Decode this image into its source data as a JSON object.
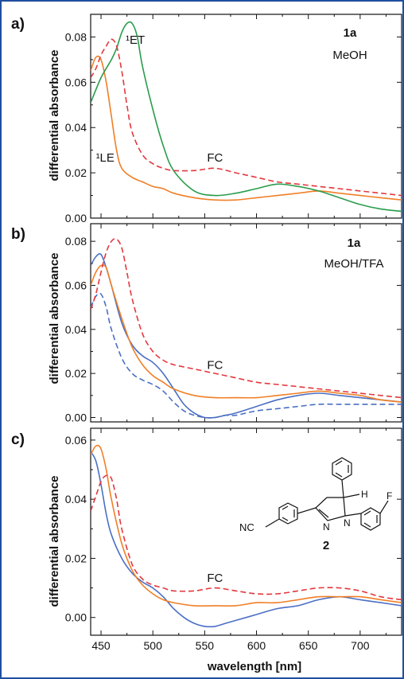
{
  "colors": {
    "orange": "#f07f27",
    "green": "#2a9d4d",
    "blue": "#4a6fc4",
    "red": "#e3383e",
    "frame": "#1f4f9f"
  },
  "chart_data": [
    {
      "type": "line",
      "panel_label": "a)",
      "ylabel": "differential absorbance",
      "xlabel": "",
      "xlim": [
        440,
        740
      ],
      "ylim": [
        0,
        0.09
      ],
      "yticks": [
        "0.00",
        "0.02",
        "0.04",
        "0.06",
        "0.08"
      ],
      "ytick_values": [
        0,
        0.02,
        0.04,
        0.06,
        0.08
      ],
      "compound": "1a",
      "condition": "MeOH",
      "annotations": [
        {
          "text": "¹ET",
          "x": 483,
          "y": 0.077
        },
        {
          "text": "¹LE",
          "x": 454,
          "y": 0.025
        },
        {
          "text": "FC",
          "x": 560,
          "y": 0.025
        }
      ],
      "series": [
        {
          "color": "orange",
          "dash": false,
          "x": [
            440,
            445,
            450,
            455,
            460,
            465,
            470,
            480,
            490,
            500,
            510,
            520,
            540,
            560,
            580,
            600,
            620,
            640,
            660,
            680,
            700,
            720,
            740
          ],
          "y": [
            0.065,
            0.071,
            0.07,
            0.06,
            0.045,
            0.03,
            0.022,
            0.018,
            0.016,
            0.014,
            0.013,
            0.011,
            0.009,
            0.008,
            0.008,
            0.009,
            0.01,
            0.011,
            0.012,
            0.011,
            0.01,
            0.009,
            0.008
          ]
        },
        {
          "color": "green",
          "dash": false,
          "x": [
            440,
            450,
            460,
            465,
            470,
            475,
            480,
            485,
            490,
            500,
            510,
            520,
            540,
            560,
            580,
            600,
            620,
            640,
            660,
            680,
            700,
            720,
            740
          ],
          "y": [
            0.051,
            0.062,
            0.07,
            0.075,
            0.082,
            0.086,
            0.086,
            0.08,
            0.067,
            0.048,
            0.032,
            0.021,
            0.012,
            0.01,
            0.011,
            0.013,
            0.015,
            0.014,
            0.012,
            0.009,
            0.006,
            0.004,
            0.003
          ]
        },
        {
          "color": "red",
          "dash": true,
          "x": [
            440,
            445,
            450,
            455,
            460,
            465,
            470,
            475,
            480,
            490,
            500,
            510,
            520,
            540,
            560,
            580,
            600,
            620,
            640,
            660,
            680,
            700,
            720,
            740
          ],
          "y": [
            0.062,
            0.066,
            0.072,
            0.076,
            0.079,
            0.076,
            0.065,
            0.05,
            0.038,
            0.028,
            0.024,
            0.022,
            0.021,
            0.021,
            0.022,
            0.02,
            0.018,
            0.016,
            0.015,
            0.014,
            0.013,
            0.012,
            0.011,
            0.01
          ]
        }
      ]
    },
    {
      "type": "line",
      "panel_label": "b)",
      "ylabel": "differential absorbance",
      "xlabel": "",
      "xlim": [
        440,
        740
      ],
      "ylim": [
        -0.002,
        0.088
      ],
      "yticks": [
        "0.00",
        "0.02",
        "0.04",
        "0.06",
        "0.08"
      ],
      "ytick_values": [
        0,
        0.02,
        0.04,
        0.06,
        0.08
      ],
      "compound": "1a",
      "condition": "MeOH/TFA",
      "annotations": [
        {
          "text": "FC",
          "x": 560,
          "y": 0.022
        }
      ],
      "series": [
        {
          "color": "blue",
          "dash": false,
          "x": [
            440,
            445,
            450,
            455,
            460,
            470,
            480,
            490,
            500,
            510,
            520,
            530,
            540,
            550,
            560,
            570,
            580,
            600,
            620,
            640,
            660,
            680,
            700,
            720,
            740
          ],
          "y": [
            0.069,
            0.073,
            0.074,
            0.068,
            0.06,
            0.043,
            0.033,
            0.028,
            0.025,
            0.02,
            0.013,
            0.006,
            0.002,
            0.0,
            0.0,
            0.001,
            0.002,
            0.005,
            0.008,
            0.01,
            0.011,
            0.01,
            0.009,
            0.008,
            0.007
          ]
        },
        {
          "color": "blue",
          "dash": true,
          "x": [
            440,
            445,
            450,
            455,
            460,
            470,
            480,
            490,
            500,
            510,
            520,
            530,
            540,
            550,
            560,
            570,
            580,
            600,
            620,
            640,
            660,
            680,
            700,
            720,
            740
          ],
          "y": [
            0.05,
            0.055,
            0.056,
            0.05,
            0.04,
            0.027,
            0.02,
            0.017,
            0.015,
            0.012,
            0.007,
            0.003,
            0.001,
            0.0,
            0.0,
            0.001,
            0.001,
            0.003,
            0.004,
            0.005,
            0.006,
            0.006,
            0.006,
            0.006,
            0.006
          ]
        },
        {
          "color": "orange",
          "dash": false,
          "x": [
            440,
            445,
            450,
            455,
            460,
            470,
            480,
            490,
            500,
            510,
            520,
            540,
            560,
            580,
            600,
            620,
            640,
            660,
            680,
            700,
            720,
            740
          ],
          "y": [
            0.06,
            0.066,
            0.069,
            0.068,
            0.06,
            0.045,
            0.032,
            0.024,
            0.019,
            0.016,
            0.013,
            0.01,
            0.009,
            0.009,
            0.009,
            0.01,
            0.011,
            0.012,
            0.011,
            0.01,
            0.008,
            0.007
          ]
        },
        {
          "color": "red",
          "dash": true,
          "x": [
            440,
            445,
            450,
            455,
            460,
            465,
            470,
            475,
            480,
            490,
            500,
            510,
            520,
            540,
            560,
            580,
            600,
            620,
            640,
            660,
            680,
            700,
            720,
            740
          ],
          "y": [
            0.049,
            0.056,
            0.066,
            0.075,
            0.08,
            0.081,
            0.077,
            0.066,
            0.054,
            0.038,
            0.03,
            0.026,
            0.024,
            0.022,
            0.02,
            0.018,
            0.016,
            0.015,
            0.014,
            0.013,
            0.012,
            0.011,
            0.01,
            0.009
          ]
        }
      ]
    },
    {
      "type": "line",
      "panel_label": "c)",
      "ylabel": "differential absorbance",
      "xlabel": "wavelength [nm]",
      "xlim": [
        440,
        740
      ],
      "xticks": [
        "450",
        "500",
        "550",
        "600",
        "650",
        "700"
      ],
      "xtick_values": [
        450,
        500,
        550,
        600,
        650,
        700
      ],
      "ylim": [
        -0.006,
        0.064
      ],
      "yticks": [
        "0.00",
        "0.02",
        "0.04",
        "0.06"
      ],
      "ytick_values": [
        0,
        0.02,
        0.04,
        0.06
      ],
      "compound": "2",
      "substituents": [
        "NC",
        "H",
        "N",
        "N",
        "F"
      ],
      "annotations": [
        {
          "text": "FC",
          "x": 560,
          "y": 0.012
        }
      ],
      "series": [
        {
          "color": "blue",
          "dash": false,
          "x": [
            440,
            445,
            450,
            455,
            460,
            470,
            480,
            490,
            500,
            510,
            520,
            530,
            540,
            550,
            560,
            570,
            580,
            600,
            620,
            640,
            660,
            680,
            700,
            720,
            740
          ],
          "y": [
            0.056,
            0.053,
            0.045,
            0.035,
            0.028,
            0.02,
            0.015,
            0.012,
            0.01,
            0.007,
            0.003,
            0.0,
            -0.002,
            -0.003,
            -0.003,
            -0.002,
            -0.001,
            0.001,
            0.003,
            0.004,
            0.006,
            0.007,
            0.006,
            0.005,
            0.004
          ]
        },
        {
          "color": "orange",
          "dash": false,
          "x": [
            440,
            445,
            450,
            455,
            460,
            470,
            480,
            490,
            500,
            510,
            520,
            540,
            560,
            580,
            600,
            620,
            640,
            660,
            680,
            700,
            720,
            740
          ],
          "y": [
            0.055,
            0.058,
            0.057,
            0.05,
            0.04,
            0.025,
            0.016,
            0.011,
            0.008,
            0.006,
            0.005,
            0.004,
            0.004,
            0.004,
            0.005,
            0.005,
            0.006,
            0.007,
            0.007,
            0.007,
            0.006,
            0.005
          ]
        },
        {
          "color": "red",
          "dash": true,
          "x": [
            440,
            445,
            450,
            455,
            460,
            465,
            470,
            480,
            490,
            500,
            510,
            520,
            540,
            560,
            580,
            600,
            620,
            640,
            660,
            680,
            700,
            720,
            740
          ],
          "y": [
            0.036,
            0.041,
            0.046,
            0.048,
            0.047,
            0.04,
            0.03,
            0.018,
            0.013,
            0.011,
            0.01,
            0.009,
            0.009,
            0.01,
            0.009,
            0.008,
            0.008,
            0.009,
            0.01,
            0.01,
            0.009,
            0.007,
            0.006
          ]
        }
      ]
    }
  ]
}
